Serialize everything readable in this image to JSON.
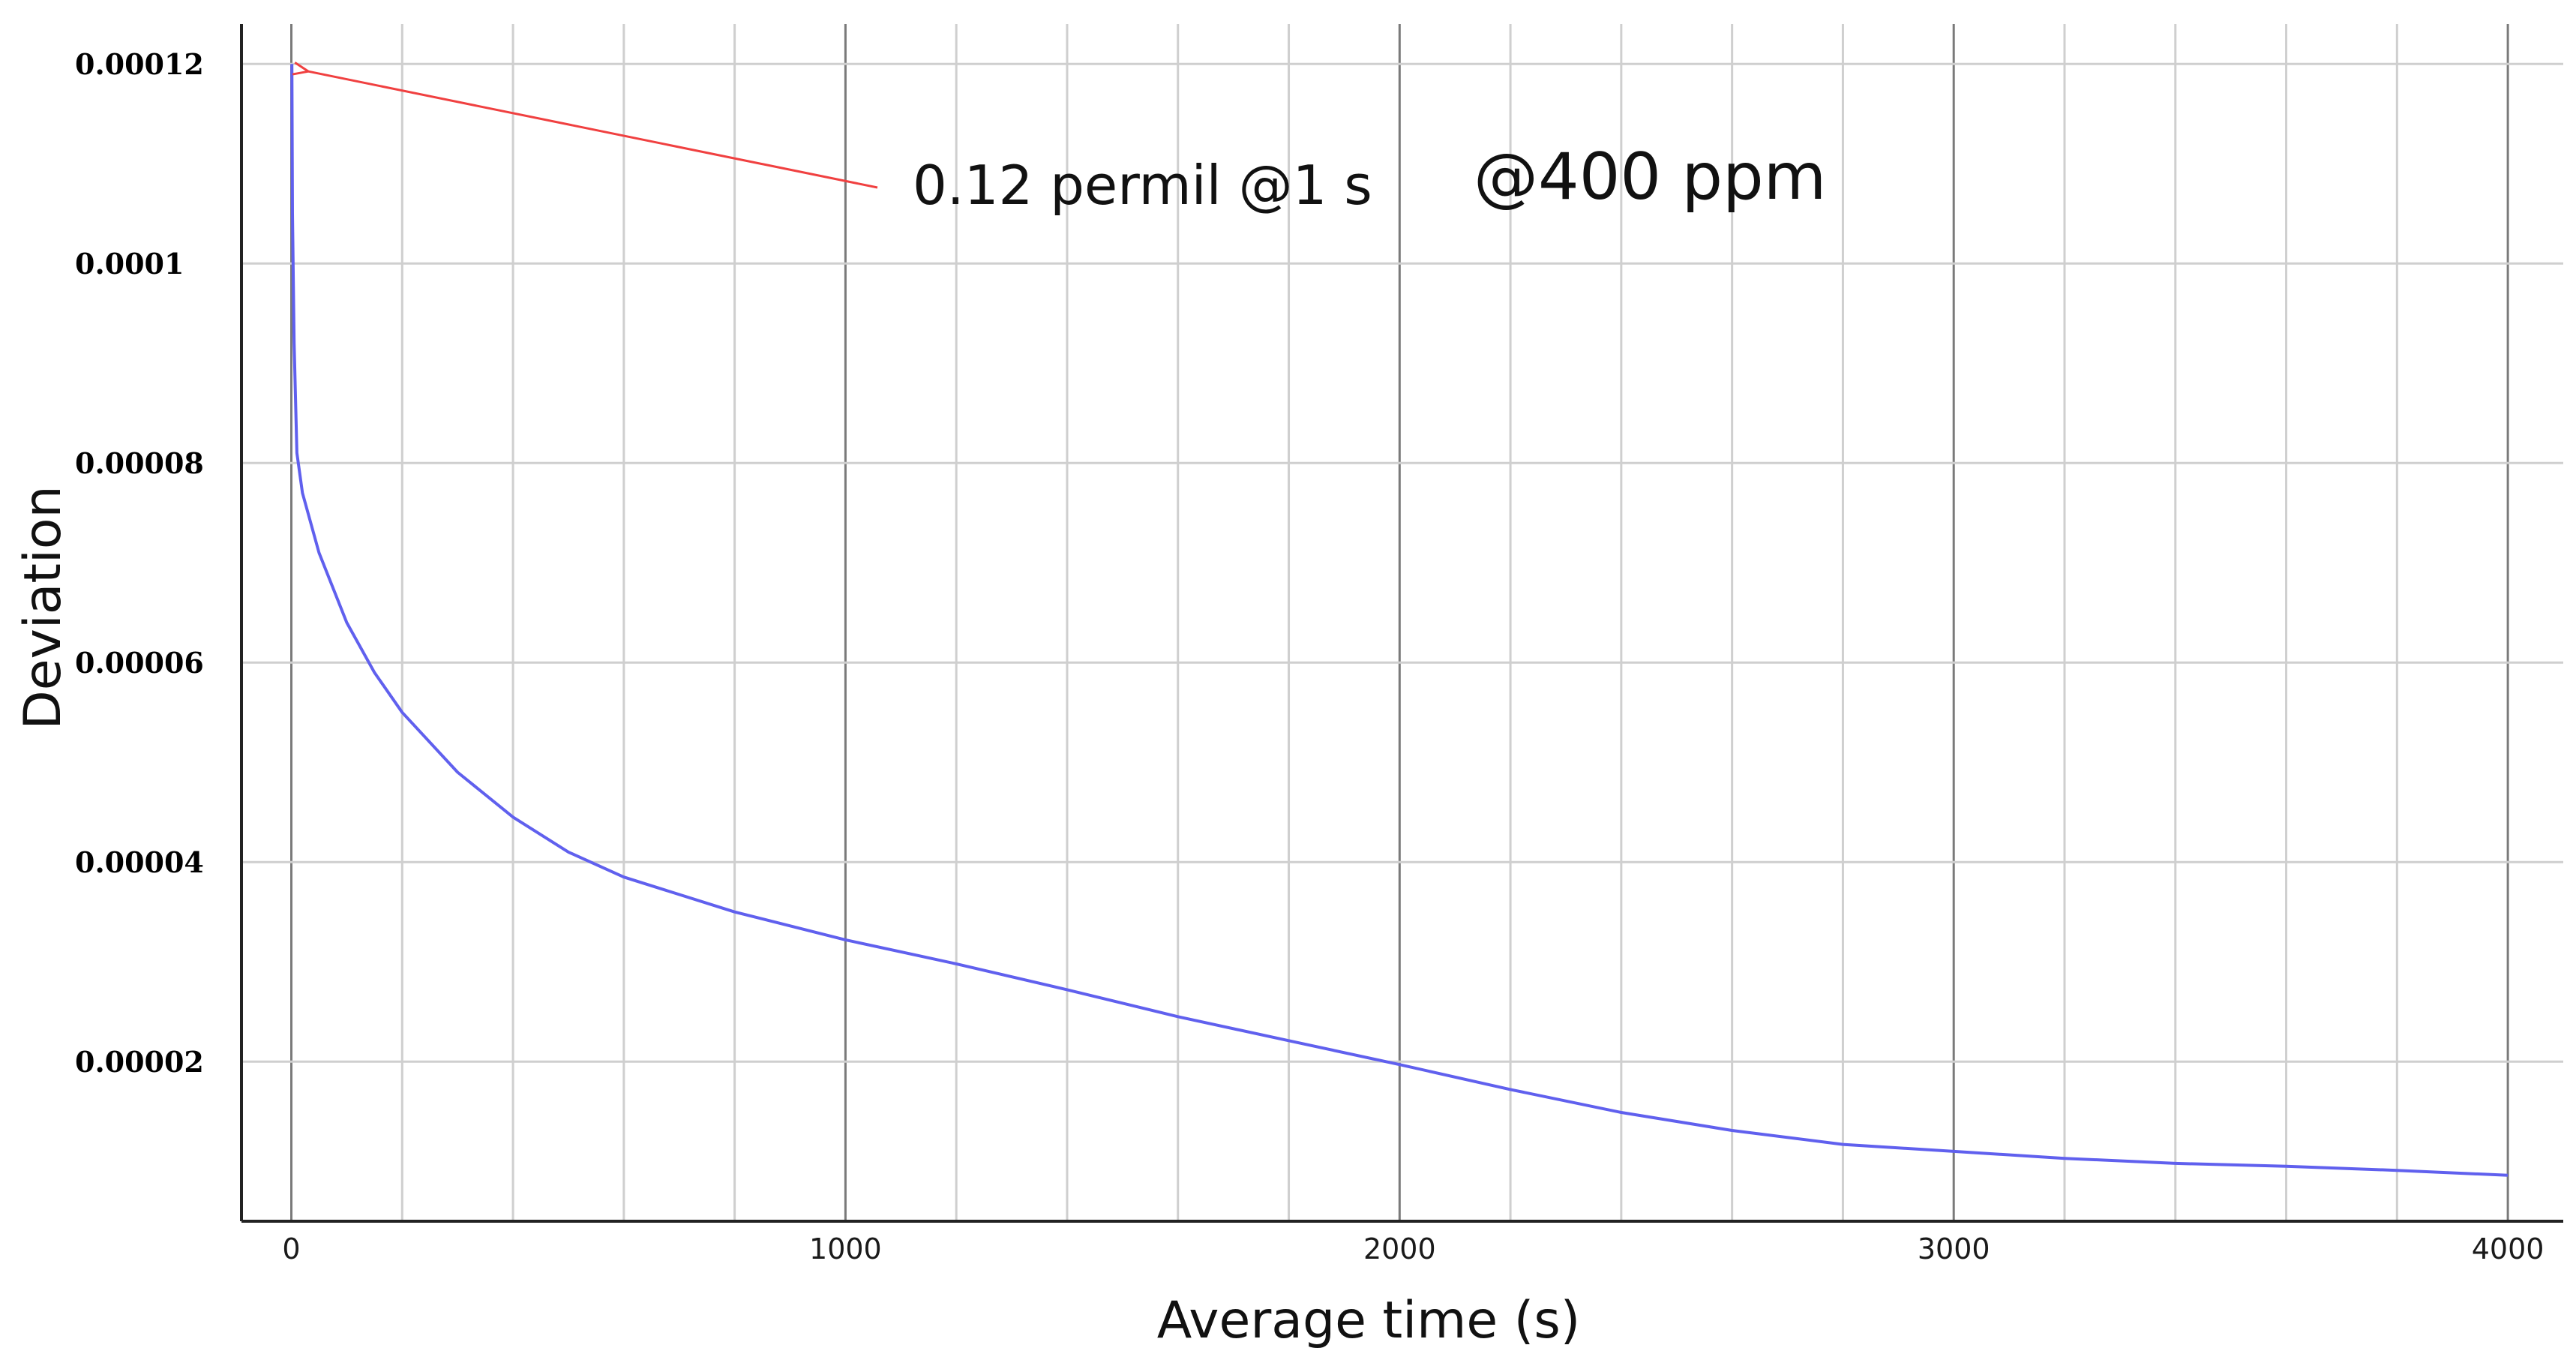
{
  "chart_data": {
    "type": "line",
    "title": "",
    "xlabel": "Average time (s)",
    "ylabel": "Deviation",
    "xlim": [
      -90,
      4100
    ],
    "ylim": [
      4e-06,
      0.000124
    ],
    "x_ticks": [
      0,
      1000,
      2000,
      3000,
      4000
    ],
    "x_tick_labels": [
      "0",
      "1000",
      "2000",
      "3000",
      "4000"
    ],
    "y_ticks": [
      2e-05,
      4e-05,
      6e-05,
      8e-05,
      0.0001,
      0.00012
    ],
    "y_tick_labels": [
      "0.00002",
      "0.00004",
      "0.00006",
      "0.00008",
      "0.0001",
      "0.00012"
    ],
    "x_minor_gridlines": [
      200,
      400,
      600,
      800,
      1200,
      1400,
      1600,
      1800,
      2200,
      2400,
      2600,
      2800,
      3200,
      3400,
      3600,
      3800
    ],
    "grid": true,
    "series": [
      {
        "name": "Deviation",
        "color": "#6060ee",
        "x": [
          1,
          2,
          5,
          10,
          20,
          50,
          100,
          150,
          200,
          300,
          400,
          500,
          600,
          800,
          1000,
          1200,
          1400,
          1600,
          1800,
          2000,
          2200,
          2400,
          2600,
          2800,
          3000,
          3200,
          3400,
          3600,
          3800,
          4000
        ],
        "y": [
          0.00012,
          0.000105,
          9.2e-05,
          8.1e-05,
          7.7e-05,
          7.1e-05,
          6.4e-05,
          5.9e-05,
          5.5e-05,
          4.9e-05,
          4.45e-05,
          4.1e-05,
          3.85e-05,
          3.5e-05,
          3.22e-05,
          2.98e-05,
          2.72e-05,
          2.45e-05,
          2.21e-05,
          1.97e-05,
          1.72e-05,
          1.49e-05,
          1.31e-05,
          1.17e-05,
          1.1e-05,
          1.03e-05,
          9.8e-06,
          9.5e-06,
          9.1e-06,
          8.6e-06
        ]
      }
    ],
    "annotations": [
      {
        "text": "0.12 permil @1 s",
        "arrow_to": {
          "x": 1,
          "y": 0.00012
        },
        "color": "#f04040"
      },
      {
        "text": "@400 ppm"
      }
    ]
  }
}
